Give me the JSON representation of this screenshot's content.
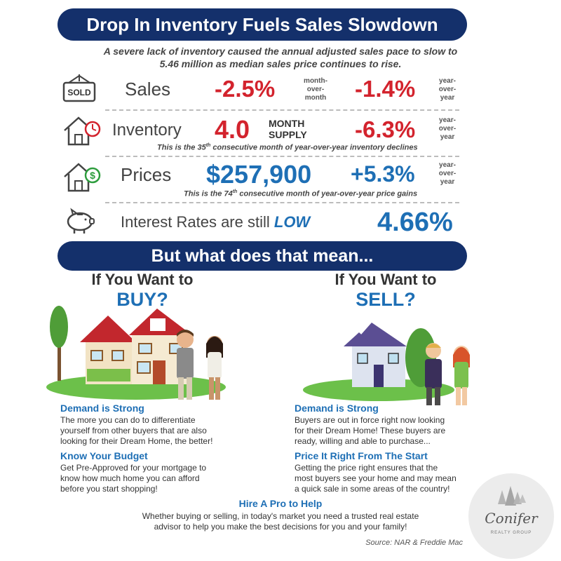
{
  "header": {
    "title": "Drop In Inventory Fuels Sales Slowdown",
    "subtitle_line1": "A severe lack of inventory caused the annual adjusted sales pace to slow to",
    "subtitle_line2": "5.46 million as median sales price continues to rise."
  },
  "stats": {
    "sales": {
      "icon_label": "SOLD",
      "label": "Sales",
      "mom_value": "-2.5%",
      "mom_l1": "month-",
      "mom_l2": "over-",
      "mom_l3": "month",
      "yoy_value": "-1.4%",
      "yoy_l1": "year-",
      "yoy_l2": "over-",
      "yoy_l3": "year"
    },
    "inventory": {
      "label": "Inventory",
      "value": "4.0",
      "unit_l1": "MONTH",
      "unit_l2": "SUPPLY",
      "yoy_value": "-6.3%",
      "yoy_l1": "year-",
      "yoy_l2": "over-",
      "yoy_l3": "year",
      "note_a": "This is the 35",
      "note_sup": "th",
      "note_b": " consecutive month of year-over-year inventory declines"
    },
    "prices": {
      "label": "Prices",
      "value": "$257,900",
      "yoy_value": "+5.3%",
      "yoy_l1": "year-",
      "yoy_l2": "over-",
      "yoy_l3": "year",
      "note_a": "This is the 74",
      "note_sup": "th",
      "note_b": " consecutive month of year-over-year price gains"
    },
    "rates": {
      "label": "Interest Rates are still",
      "emphasis": "LOW",
      "value": "4.66%"
    }
  },
  "meaning": {
    "title": "But what does that mean..."
  },
  "buy": {
    "head_a": "If You Want to",
    "head_b": "BUY?",
    "s1_title": "Demand is Strong",
    "s1_l1": "The more you can do to differentiate",
    "s1_l2": "yourself from other buyers that are also",
    "s1_l3": "looking for their Dream Home, the better!",
    "s2_title": "Know Your Budget",
    "s2_l1": "Get Pre-Approved for your mortgage to",
    "s2_l2": "know how much home you can afford",
    "s2_l3": "before you start shopping!"
  },
  "sell": {
    "head_a": "If You Want to",
    "head_b": "SELL?",
    "s1_title": "Demand is Strong",
    "s1_l1": "Buyers are out in force right now looking",
    "s1_l2": "for their Dream Home! These buyers are",
    "s1_l3": "ready, willing and able to purchase...",
    "s2_title": "Price It Right From The Start",
    "s2_l1": "Getting the price right ensures that the",
    "s2_l2": "most buyers see your home and may mean",
    "s2_l3": "a quick sale in some areas of the country!"
  },
  "pro": {
    "title": "Hire A Pro to Help",
    "l1": "Whether buying or selling, in today's market you need a trusted real estate",
    "l2": "advisor to help you make the best decisions for you and your family!"
  },
  "source": "Source: NAR & Freddie Mac",
  "logo": {
    "name": "Conifer",
    "sub": "REALTY GROUP"
  },
  "colors": {
    "navy": "#14306b",
    "red": "#d3232d",
    "blue": "#1e6fb5"
  },
  "icons": [
    "sold-sign-icon",
    "house-clock-icon",
    "house-dollar-icon",
    "piggy-bank-icon",
    "house-buy-illustration",
    "house-sell-illustration",
    "trees-logo-icon"
  ]
}
